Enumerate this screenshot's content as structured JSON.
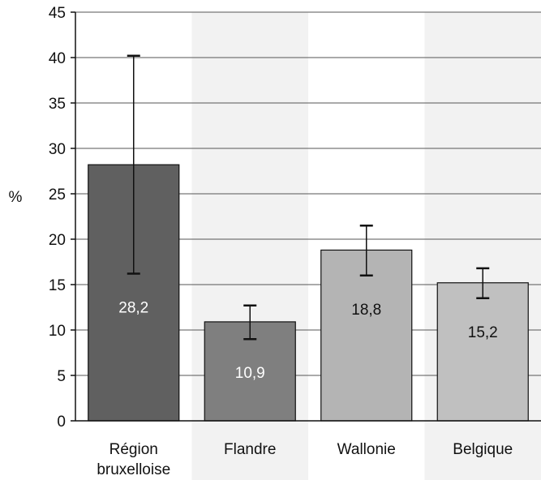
{
  "chart_data": {
    "type": "bar",
    "title": "",
    "xlabel": "",
    "ylabel": "%",
    "ylim": [
      0,
      45
    ],
    "yticks": [
      0,
      5,
      10,
      15,
      20,
      25,
      30,
      35,
      40,
      45
    ],
    "grid": true,
    "categories": [
      [
        "Région",
        "bruxelloise"
      ],
      [
        "Flandre"
      ],
      [
        "Wallonie"
      ],
      [
        "Belgique"
      ]
    ],
    "values": [
      28.2,
      10.9,
      18.8,
      15.2
    ],
    "value_labels": [
      "28,2",
      "10,9",
      "18,8",
      "15,2"
    ],
    "error_low": [
      16.2,
      9.0,
      16.0,
      13.5
    ],
    "error_high": [
      40.2,
      12.7,
      21.5,
      16.8
    ],
    "colors": {
      "bars": [
        "#606060",
        "#7f7f7f",
        "#b4b4b4",
        "#c0c0c0"
      ],
      "value_text": [
        "#ffffff",
        "#ffffff",
        "#111111",
        "#111111"
      ],
      "band": "#f2f2f2",
      "grid": "#555555"
    }
  }
}
